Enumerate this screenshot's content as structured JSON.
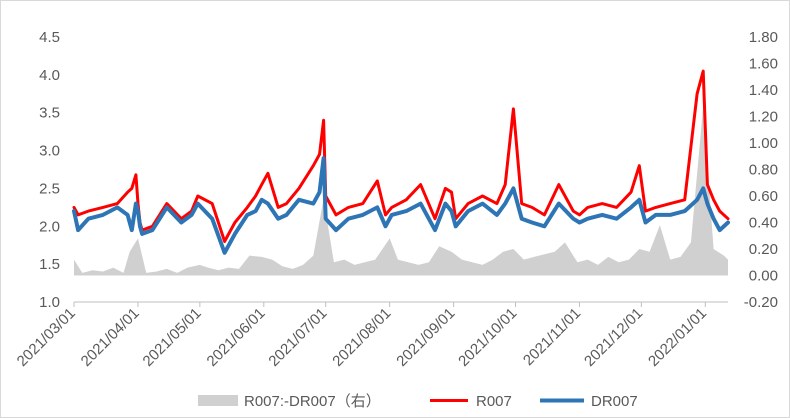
{
  "chart_data": {
    "type": "line",
    "title": "",
    "x_tick_labels": [
      "2021/03/01",
      "2021/04/01",
      "2021/05/01",
      "2021/06/01",
      "2021/07/01",
      "2021/08/01",
      "2021/09/01",
      "2021/10/01",
      "2021/11/01",
      "2021/12/01",
      "2022/01/01"
    ],
    "y_left": {
      "ylim": [
        1.0,
        4.5
      ],
      "ticks": [
        "1.0",
        "1.5",
        "2.0",
        "2.5",
        "3.0",
        "3.5",
        "4.0",
        "4.5"
      ]
    },
    "y_right": {
      "ylim": [
        -0.2,
        1.8
      ],
      "ticks": [
        "-0.20",
        "0.00",
        "0.20",
        "0.40",
        "0.60",
        "0.80",
        "1.00",
        "1.20",
        "1.40",
        "1.60",
        "1.80"
      ]
    },
    "grid": false,
    "legend_position": "bottom",
    "colors": {
      "area": "#d0d0d0",
      "r007": "#ff0000",
      "dr007": "#2e75b6"
    },
    "series": [
      {
        "name": "R007:-DR007（右）",
        "axis": "right",
        "type": "area",
        "x": [
          "2021/03/01",
          "2021/03/05",
          "2021/03/10",
          "2021/03/15",
          "2021/03/20",
          "2021/03/25",
          "2021/03/28",
          "2021/04/01",
          "2021/04/05",
          "2021/04/10",
          "2021/04/15",
          "2021/04/20",
          "2021/04/25",
          "2021/05/01",
          "2021/05/05",
          "2021/05/10",
          "2021/05/15",
          "2021/05/20",
          "2021/05/25",
          "2021/05/31",
          "2021/06/05",
          "2021/06/10",
          "2021/06/15",
          "2021/06/20",
          "2021/06/25",
          "2021/06/30",
          "2021/07/05",
          "2021/07/10",
          "2021/07/15",
          "2021/07/20",
          "2021/07/25",
          "2021/08/01",
          "2021/08/05",
          "2021/08/10",
          "2021/08/15",
          "2021/08/20",
          "2021/08/25",
          "2021/08/31",
          "2021/09/05",
          "2021/09/10",
          "2021/09/15",
          "2021/09/20",
          "2021/09/25",
          "2021/09/30",
          "2021/10/05",
          "2021/10/10",
          "2021/10/15",
          "2021/10/20",
          "2021/10/25",
          "2021/10/31",
          "2021/11/05",
          "2021/11/10",
          "2021/11/15",
          "2021/11/20",
          "2021/11/25",
          "2021/11/30",
          "2021/12/05",
          "2021/12/10",
          "2021/12/15",
          "2021/12/20",
          "2021/12/25",
          "2021/12/31",
          "2022/01/05",
          "2022/01/10",
          "2022/01/12"
        ],
        "values": [
          0.12,
          0.02,
          0.04,
          0.03,
          0.06,
          0.02,
          0.18,
          0.28,
          0.02,
          0.03,
          0.05,
          0.02,
          0.06,
          0.08,
          0.06,
          0.04,
          0.06,
          0.05,
          0.15,
          0.14,
          0.12,
          0.07,
          0.05,
          0.08,
          0.15,
          0.58,
          0.1,
          0.12,
          0.08,
          0.1,
          0.12,
          0.28,
          0.12,
          0.1,
          0.08,
          0.1,
          0.22,
          0.18,
          0.12,
          0.1,
          0.08,
          0.12,
          0.18,
          0.2,
          0.12,
          0.14,
          0.16,
          0.18,
          0.25,
          0.1,
          0.12,
          0.08,
          0.14,
          0.1,
          0.12,
          0.2,
          0.18,
          0.38,
          0.12,
          0.14,
          0.25,
          1.28,
          0.2,
          0.15,
          0.12
        ]
      },
      {
        "name": "R007",
        "axis": "left",
        "type": "line",
        "x": [
          "2021/03/01",
          "2021/03/03",
          "2021/03/08",
          "2021/03/15",
          "2021/03/22",
          "2021/03/27",
          "2021/03/29",
          "2021/03/31",
          "2021/04/01",
          "2021/04/02",
          "2021/04/03",
          "2021/04/08",
          "2021/04/15",
          "2021/04/22",
          "2021/04/27",
          "2021/04/30",
          "2021/05/07",
          "2021/05/13",
          "2021/05/18",
          "2021/05/24",
          "2021/05/28",
          "2021/05/31",
          "2021/06/03",
          "2021/06/08",
          "2021/06/12",
          "2021/06/18",
          "2021/06/25",
          "2021/06/28",
          "2021/06/30",
          "2021/07/01",
          "2021/07/06",
          "2021/07/12",
          "2021/07/19",
          "2021/07/26",
          "2021/07/30",
          "2021/08/02",
          "2021/08/09",
          "2021/08/16",
          "2021/08/23",
          "2021/08/28",
          "2021/08/31",
          "2021/09/02",
          "2021/09/08",
          "2021/09/15",
          "2021/09/22",
          "2021/09/26",
          "2021/09/30",
          "2021/10/04",
          "2021/10/09",
          "2021/10/15",
          "2021/10/22",
          "2021/10/29",
          "2021/11/01",
          "2021/11/05",
          "2021/11/12",
          "2021/11/19",
          "2021/11/26",
          "2021/11/30",
          "2021/12/03",
          "2021/12/08",
          "2021/12/15",
          "2021/12/22",
          "2021/12/28",
          "2021/12/31",
          "2022/01/02",
          "2022/01/05",
          "2022/01/08",
          "2022/01/12"
        ],
        "values": [
          2.25,
          2.15,
          2.2,
          2.25,
          2.3,
          2.45,
          2.5,
          2.68,
          2.3,
          2.05,
          1.95,
          2.0,
          2.3,
          2.1,
          2.2,
          2.4,
          2.3,
          1.8,
          2.05,
          2.25,
          2.4,
          2.55,
          2.7,
          2.25,
          2.3,
          2.5,
          2.8,
          2.95,
          3.4,
          2.4,
          2.15,
          2.25,
          2.3,
          2.6,
          2.15,
          2.25,
          2.35,
          2.55,
          2.1,
          2.5,
          2.45,
          2.1,
          2.3,
          2.4,
          2.3,
          2.55,
          3.55,
          2.3,
          2.25,
          2.15,
          2.55,
          2.2,
          2.15,
          2.25,
          2.3,
          2.25,
          2.45,
          2.8,
          2.2,
          2.25,
          2.3,
          2.35,
          3.75,
          4.05,
          2.55,
          2.35,
          2.2,
          2.1
        ]
      },
      {
        "name": "DR007",
        "axis": "left",
        "type": "line",
        "x": [
          "2021/03/01",
          "2021/03/03",
          "2021/03/08",
          "2021/03/15",
          "2021/03/22",
          "2021/03/27",
          "2021/03/29",
          "2021/03/31",
          "2021/04/01",
          "2021/04/02",
          "2021/04/03",
          "2021/04/08",
          "2021/04/15",
          "2021/04/22",
          "2021/04/27",
          "2021/04/30",
          "2021/05/07",
          "2021/05/13",
          "2021/05/18",
          "2021/05/24",
          "2021/05/28",
          "2021/05/31",
          "2021/06/03",
          "2021/06/08",
          "2021/06/12",
          "2021/06/18",
          "2021/06/25",
          "2021/06/28",
          "2021/06/30",
          "2021/07/01",
          "2021/07/06",
          "2021/07/12",
          "2021/07/19",
          "2021/07/26",
          "2021/07/30",
          "2021/08/02",
          "2021/08/09",
          "2021/08/16",
          "2021/08/23",
          "2021/08/28",
          "2021/08/31",
          "2021/09/02",
          "2021/09/08",
          "2021/09/15",
          "2021/09/22",
          "2021/09/26",
          "2021/09/30",
          "2021/10/04",
          "2021/10/09",
          "2021/10/15",
          "2021/10/22",
          "2021/10/29",
          "2021/11/01",
          "2021/11/05",
          "2021/11/12",
          "2021/11/19",
          "2021/11/26",
          "2021/11/30",
          "2021/12/03",
          "2021/12/08",
          "2021/12/15",
          "2021/12/22",
          "2021/12/28",
          "2021/12/31",
          "2022/01/02",
          "2022/01/05",
          "2022/01/08",
          "2022/01/12"
        ],
        "values": [
          2.2,
          1.95,
          2.1,
          2.15,
          2.25,
          2.15,
          1.95,
          2.3,
          2.2,
          2.0,
          1.9,
          1.95,
          2.25,
          2.05,
          2.15,
          2.3,
          2.1,
          1.65,
          1.9,
          2.15,
          2.2,
          2.35,
          2.3,
          2.1,
          2.15,
          2.35,
          2.3,
          2.45,
          2.9,
          2.1,
          1.95,
          2.1,
          2.15,
          2.25,
          2.0,
          2.15,
          2.2,
          2.3,
          1.95,
          2.3,
          2.2,
          2.0,
          2.2,
          2.3,
          2.15,
          2.3,
          2.5,
          2.1,
          2.05,
          2.0,
          2.3,
          2.1,
          2.05,
          2.1,
          2.15,
          2.1,
          2.25,
          2.35,
          2.05,
          2.15,
          2.15,
          2.2,
          2.35,
          2.5,
          2.3,
          2.1,
          1.95,
          2.05
        ]
      }
    ]
  }
}
